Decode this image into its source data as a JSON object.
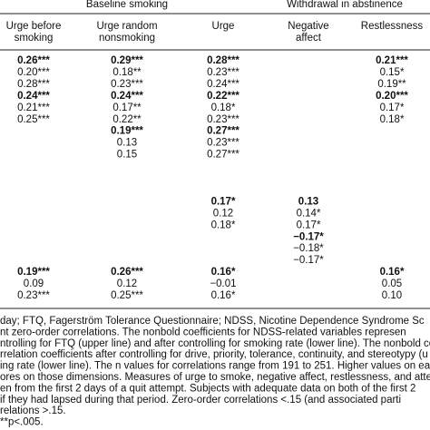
{
  "table": {
    "groups": [
      {
        "label": "Baseline smoking"
      },
      {
        "label": "Withdrawal in abstinence"
      }
    ],
    "columns": [
      {
        "lines": [
          "Urge before",
          "smoking"
        ]
      },
      {
        "lines": [
          "Urge random",
          "nonsmoking"
        ]
      },
      {
        "lines": [
          "Urge"
        ]
      },
      {
        "lines": [
          "Negative",
          "affect"
        ]
      },
      {
        "lines": [
          "Restlessness"
        ]
      }
    ],
    "rows": [
      [
        {
          "text": "0.26***",
          "bold": true
        },
        {
          "text": "0.29***",
          "bold": true
        },
        {
          "text": "0.28***",
          "bold": true
        },
        null,
        {
          "text": "0.21***",
          "bold": true
        }
      ],
      [
        {
          "text": "0.20***"
        },
        {
          "text": "0.18**"
        },
        {
          "text": "0.23***"
        },
        null,
        {
          "text": "0.15*"
        }
      ],
      [
        {
          "text": "0.28***"
        },
        {
          "text": "0.23***"
        },
        {
          "text": "0.24***"
        },
        null,
        {
          "text": "0.19**"
        }
      ],
      [
        {
          "text": "0.24***",
          "bold": true
        },
        {
          "text": "0.24***",
          "bold": true
        },
        {
          "text": "0.22***",
          "bold": true
        },
        null,
        {
          "text": "0.20***",
          "bold": true
        }
      ],
      [
        {
          "text": "0.21***"
        },
        {
          "text": "0.17**"
        },
        {
          "text": "0.18*"
        },
        null,
        {
          "text": "0.17*"
        }
      ],
      [
        {
          "text": "0.25***"
        },
        {
          "text": "0.22**"
        },
        {
          "text": "0.23***"
        },
        null,
        {
          "text": "0.18*"
        }
      ],
      [
        null,
        {
          "text": "0.19***",
          "bold": true
        },
        {
          "text": "0.27***",
          "bold": true
        },
        null,
        null
      ],
      [
        null,
        {
          "text": "0.13"
        },
        {
          "text": "0.23***"
        },
        null,
        null
      ],
      [
        null,
        {
          "text": "0.15"
        },
        {
          "text": "0.27***"
        },
        null,
        null
      ],
      [
        null,
        null,
        null,
        null,
        null
      ],
      [
        null,
        null,
        null,
        null,
        null
      ],
      [
        null,
        null,
        null,
        null,
        null
      ],
      [
        null,
        null,
        {
          "text": "0.17*",
          "bold": true
        },
        {
          "text": "0.13",
          "bold": true
        },
        null
      ],
      [
        null,
        null,
        {
          "text": "0.12"
        },
        {
          "text": "0.14*"
        },
        null
      ],
      [
        null,
        null,
        {
          "text": "0.18*"
        },
        {
          "text": "0.17*"
        },
        null
      ],
      [
        null,
        null,
        null,
        {
          "text": "−0.17*",
          "bold": true
        },
        null
      ],
      [
        null,
        null,
        null,
        {
          "text": "−0.18*"
        },
        null
      ],
      [
        null,
        null,
        null,
        {
          "text": "−0.17*"
        },
        null
      ],
      [
        {
          "text": "0.19***",
          "bold": true
        },
        {
          "text": "0.26***",
          "bold": true
        },
        {
          "text": "0.16*",
          "bold": true
        },
        null,
        {
          "text": "0.16*",
          "bold": true
        }
      ],
      [
        {
          "text": "0.09"
        },
        {
          "text": "0.12"
        },
        {
          "text": "−0.01"
        },
        null,
        {
          "text": "0.05"
        }
      ],
      [
        {
          "text": "0.23***"
        },
        {
          "text": "0.25***"
        },
        {
          "text": "0.16*"
        },
        null,
        {
          "text": "0.10"
        }
      ]
    ],
    "notes": [
      "day; FTQ, Fagerström Tolerance Questionnaire; NDSS, Nicotine Dependence Syndrome Sc",
      "nt zero-order correlations. The nonbold coefficients for NDSS-related variables represen",
      "ntrolling for FTQ (upper line) and after controlling for smoking rate (lower line). The nonbold coeffi",
      "rrelation coefficients after controlling for drive, priority, tolerance, continuity, and stereotypy (u",
      "ing rate (lower line). The n values for correlations range from 191 to 251. Higher values on eac",
      "ores on those dimensions. Measures of urge to smoke, negative affect, restlessness, and atte",
      "en from the first 2 days of a quit attempt. Subjects with adequate data on both of the first 2",
      "if they had lapsed during that period. Zero-order correlations <.15 (and associated parti",
      "relations >.15.",
      "**p<.005."
    ]
  }
}
